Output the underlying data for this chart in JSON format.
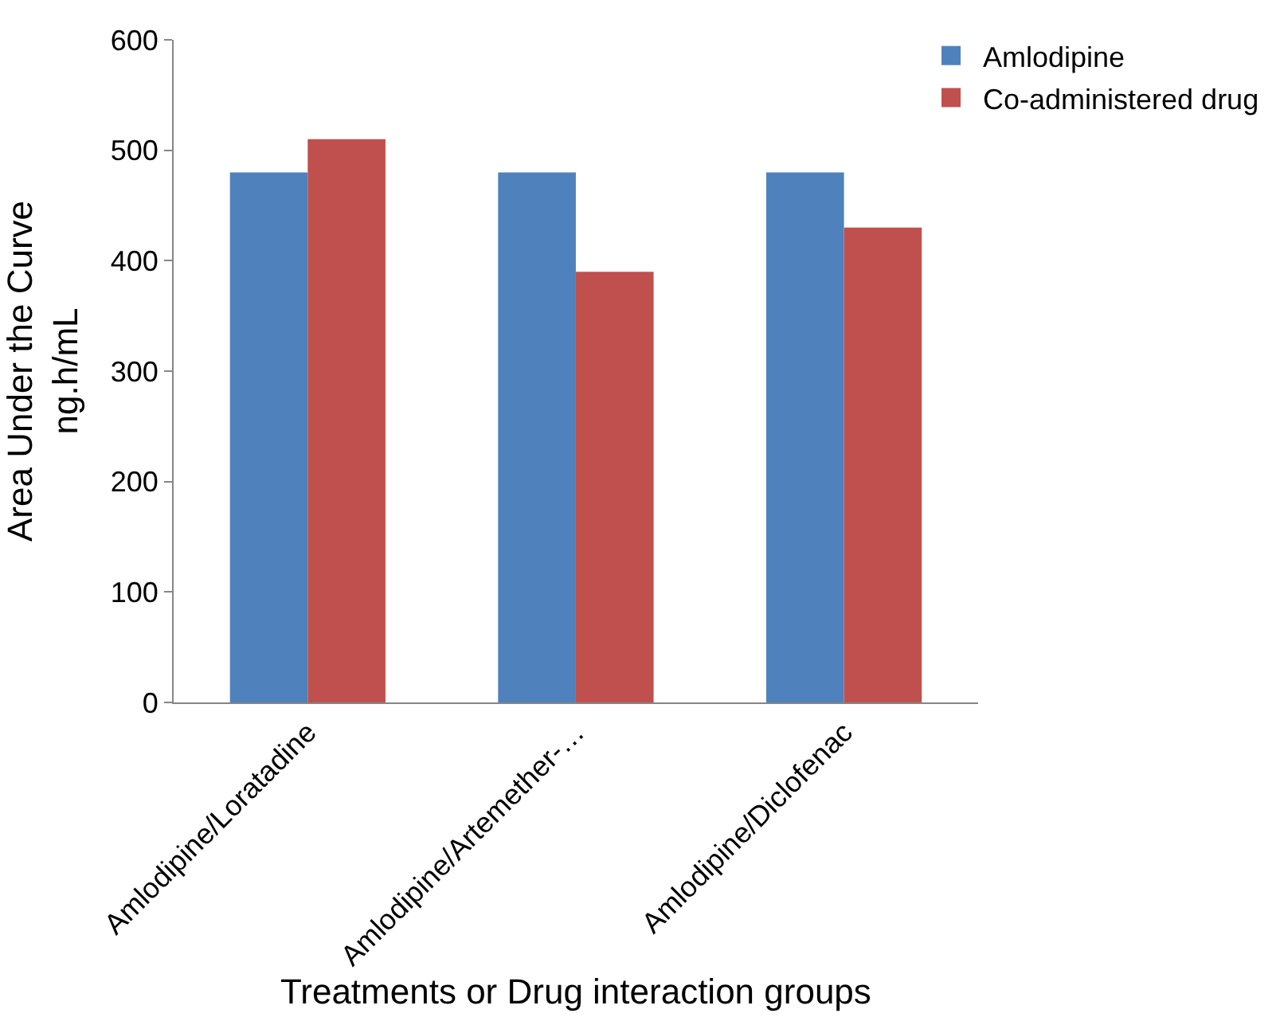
{
  "chart_data": {
    "type": "bar",
    "xlabel": "Treatments or Drug interaction groups",
    "ylabel": "Area Under the Curve\nng.h/mL",
    "categories": [
      "Amlodipine/Loratadine",
      "Amlodipine/Artemether-…",
      "Amlodipine/Diclofenac"
    ],
    "series": [
      {
        "name": "Amlodipine",
        "color": "#4f81bd",
        "values": [
          480,
          480,
          480
        ]
      },
      {
        "name": "Co-administered drug",
        "color": "#c0504d",
        "values": [
          510,
          390,
          430
        ]
      }
    ],
    "ylim": [
      0,
      600
    ],
    "yticks": [
      0,
      100,
      200,
      300,
      400,
      500,
      600
    ],
    "legend": "top right"
  }
}
